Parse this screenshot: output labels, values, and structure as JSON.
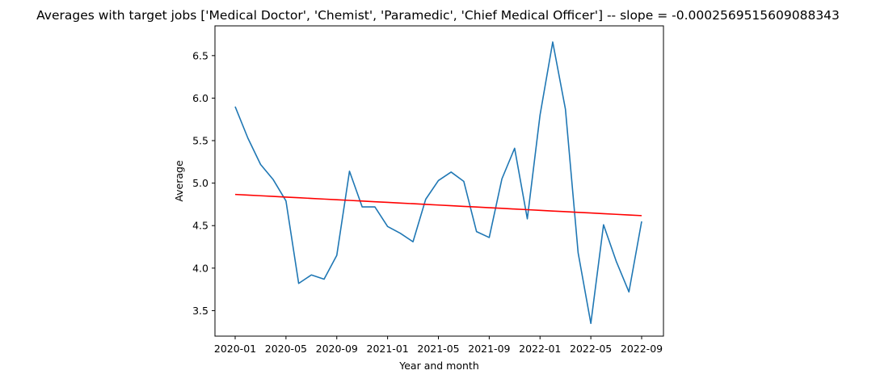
{
  "chart_data": {
    "type": "line",
    "title": "Averages with target jobs ['Medical Doctor', 'Chemist', 'Paramedic', 'Chief Medical Officer'] -- slope = -0.0002569515609088343",
    "xlabel": "Year and month",
    "ylabel": "Average",
    "x_tick_labels": [
      "2020-01",
      "2020-05",
      "2020-09",
      "2021-01",
      "2021-05",
      "2021-09",
      "2022-01",
      "2022-05",
      "2022-09"
    ],
    "y_ticks": [
      3.5,
      4.0,
      4.5,
      5.0,
      5.5,
      6.0,
      6.5
    ],
    "y_tick_labels": [
      "3.5",
      "4.0",
      "4.5",
      "5.0",
      "5.5",
      "6.0",
      "6.5"
    ],
    "ylim": [
      3.2,
      6.85
    ],
    "x": [
      "2020-01",
      "2020-02",
      "2020-03",
      "2020-04",
      "2020-05",
      "2020-06",
      "2020-07",
      "2020-08",
      "2020-09",
      "2020-10",
      "2020-11",
      "2020-12",
      "2021-01",
      "2021-02",
      "2021-03",
      "2021-04",
      "2021-05",
      "2021-06",
      "2021-07",
      "2021-08",
      "2021-09",
      "2021-10",
      "2021-11",
      "2021-12",
      "2022-01",
      "2022-02",
      "2022-03",
      "2022-04",
      "2022-05",
      "2022-06",
      "2022-07",
      "2022-08",
      "2022-09"
    ],
    "grid": false,
    "series": [
      {
        "color": "#1f77b4",
        "values": [
          5.9,
          5.53,
          5.22,
          5.04,
          4.79,
          3.82,
          3.92,
          3.87,
          4.15,
          5.14,
          4.72,
          4.72,
          4.49,
          4.41,
          4.31,
          4.81,
          5.03,
          5.13,
          5.02,
          4.43,
          4.36,
          5.05,
          5.41,
          4.58,
          5.8,
          6.66,
          5.87,
          4.18,
          3.35,
          4.51,
          4.08,
          3.72,
          4.55
        ]
      },
      {
        "color": "#ff0000",
        "values": [
          4.867,
          4.8592,
          4.8514,
          4.8436,
          4.8358,
          4.828,
          4.8202,
          4.8124,
          4.8046,
          4.7968,
          4.789,
          4.7812,
          4.7734,
          4.7656,
          4.7578,
          4.75,
          4.7422,
          4.7344,
          4.7266,
          4.7188,
          4.711,
          4.7032,
          4.6954,
          4.6876,
          4.6798,
          4.672,
          4.6642,
          4.6564,
          4.6486,
          4.6408,
          4.633,
          4.6252,
          4.6174
        ]
      }
    ]
  }
}
